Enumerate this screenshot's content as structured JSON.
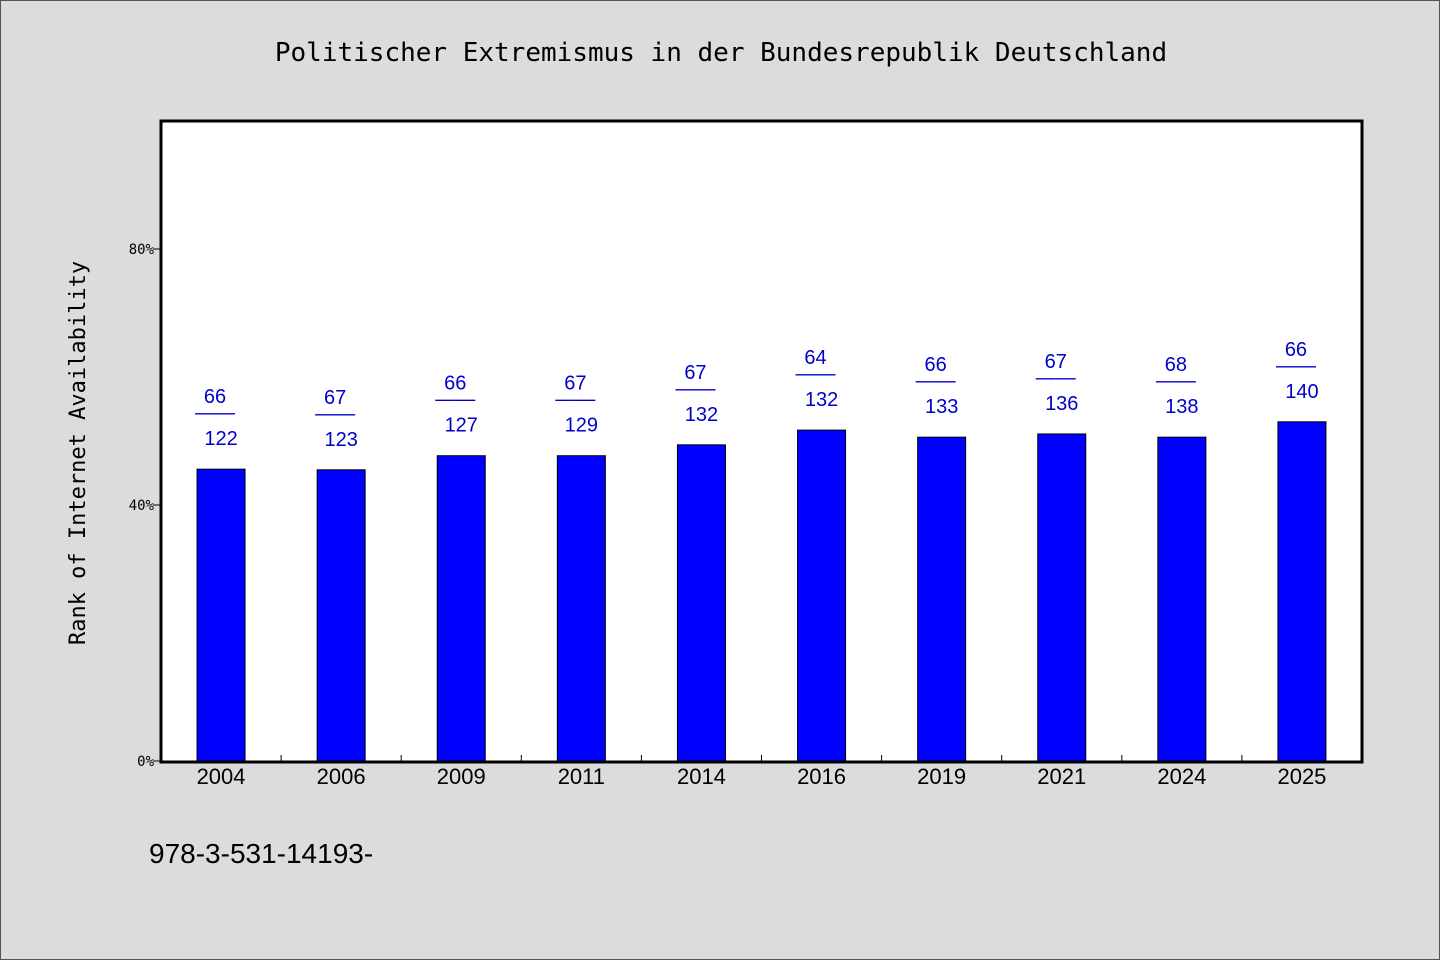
{
  "chart_data": {
    "type": "bar",
    "title": "Politischer Extremismus in der Bundesrepublik Deutschland",
    "xlabel": "",
    "ylabel": "Rank of Internet Availability",
    "ylim": [
      0,
      100
    ],
    "yticks": [
      {
        "value": 0,
        "label": "0%"
      },
      {
        "value": 40,
        "label": "40%"
      },
      {
        "value": 80,
        "label": "80%"
      }
    ],
    "categories": [
      "2004",
      "2006",
      "2009",
      "2011",
      "2014",
      "2016",
      "2019",
      "2021",
      "2024",
      "2025"
    ],
    "values": [
      45.6,
      45.5,
      47.7,
      47.7,
      49.4,
      51.7,
      50.6,
      51.1,
      50.6,
      53.0
    ],
    "data_labels": [
      {
        "top": "66",
        "sep": "——",
        "bottom": "122"
      },
      {
        "top": "67",
        "sep": "——",
        "bottom": "123"
      },
      {
        "top": "66",
        "sep": "——",
        "bottom": "127"
      },
      {
        "top": "67",
        "sep": "——",
        "bottom": "129"
      },
      {
        "top": "67",
        "sep": "——",
        "bottom": "132"
      },
      {
        "top": "64",
        "sep": "——",
        "bottom": "132"
      },
      {
        "top": "66",
        "sep": "——",
        "bottom": "133"
      },
      {
        "top": "67",
        "sep": "——",
        "bottom": "136"
      },
      {
        "top": "68",
        "sep": "——",
        "bottom": "138"
      },
      {
        "top": "66",
        "sep": "——",
        "bottom": "140"
      }
    ],
    "bar_color": "#0000ff",
    "label_color": "#0000cc",
    "plot_background": "#ffffff",
    "page_background": "#dcdcdc",
    "grid": false,
    "legend": "none"
  },
  "footer": {
    "text": "978-3-531-14193-"
  }
}
